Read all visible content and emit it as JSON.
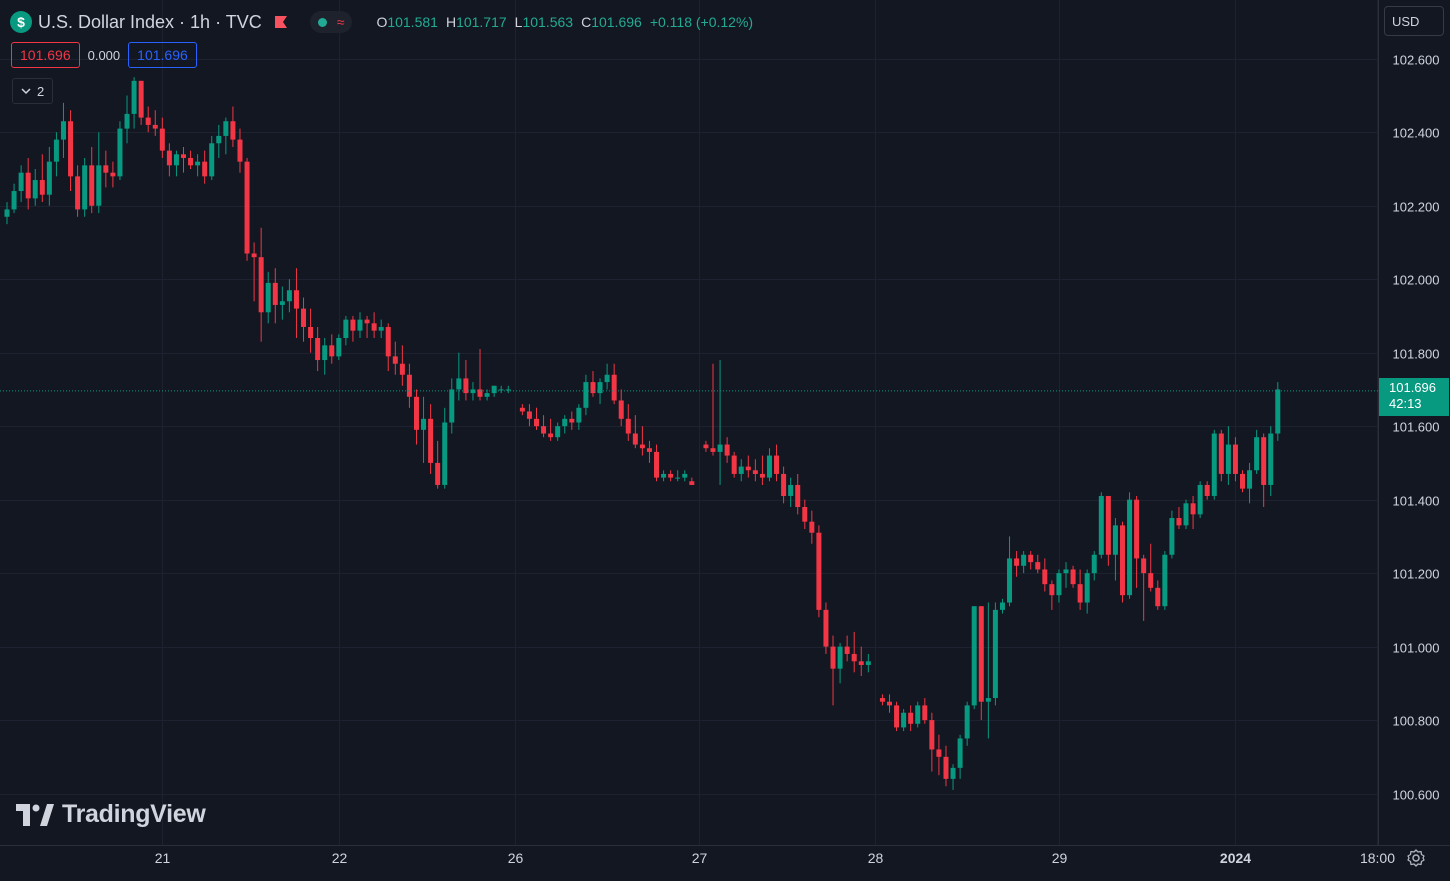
{
  "header": {
    "icon_glyph": "$",
    "title": "U.S. Dollar Index · 1h · TVC",
    "ohlc": {
      "o_label": "O",
      "o": "101.581",
      "h_label": "H",
      "h": "101.717",
      "l_label": "L",
      "l": "101.563",
      "c_label": "C",
      "c": "101.696",
      "change": "+0.118 (+0.12%)"
    },
    "status_icons": [
      "market-open-dot-icon",
      "delayed-data-icon"
    ]
  },
  "trade": {
    "sell": "101.696",
    "spread": "0.000",
    "buy": "101.696"
  },
  "indicators_toggle": {
    "count": "2"
  },
  "currency_button": "USD",
  "last_price": {
    "value": "101.696",
    "countdown": "42:13"
  },
  "logo_text": "TradingView",
  "colors": {
    "up": "#089981",
    "down": "#f23645",
    "background": "#131722",
    "grid": "#1e2230",
    "text": "#d1d4dc"
  },
  "chart_data": {
    "type": "candlestick",
    "title": "U.S. Dollar Index · 1h · TVC",
    "interval": "1h",
    "y_ticks": [
      "102.600",
      "102.400",
      "102.200",
      "102.000",
      "101.800",
      "101.600",
      "101.400",
      "101.200",
      "101.000",
      "100.800",
      "100.600"
    ],
    "ylim": [
      100.46,
      102.76
    ],
    "x_ticks": [
      {
        "label": "21",
        "index": 22
      },
      {
        "label": "22",
        "index": 47
      },
      {
        "label": "26",
        "index": 72
      },
      {
        "label": "27",
        "index": 98
      },
      {
        "label": "28",
        "index": 123
      },
      {
        "label": "29",
        "index": 149
      },
      {
        "label": "2024",
        "index": 174
      },
      {
        "label": "18:00",
        "index": 194
      }
    ],
    "grid": true,
    "last_price_line": 101.696,
    "candles": [
      [
        102.17,
        102.21,
        102.15,
        102.19
      ],
      [
        102.19,
        102.26,
        102.18,
        102.24
      ],
      [
        102.24,
        102.31,
        102.21,
        102.29
      ],
      [
        102.29,
        102.33,
        102.19,
        102.22
      ],
      [
        102.22,
        102.3,
        102.2,
        102.27
      ],
      [
        102.27,
        102.34,
        102.21,
        102.23
      ],
      [
        102.23,
        102.36,
        102.2,
        102.32
      ],
      [
        102.32,
        102.4,
        102.28,
        102.38
      ],
      [
        102.38,
        102.48,
        102.33,
        102.43
      ],
      [
        102.43,
        102.46,
        102.24,
        102.28
      ],
      [
        102.28,
        102.31,
        102.17,
        102.19
      ],
      [
        102.19,
        102.33,
        102.17,
        102.31
      ],
      [
        102.31,
        102.36,
        102.18,
        102.2
      ],
      [
        102.2,
        102.4,
        102.18,
        102.31
      ],
      [
        102.31,
        102.35,
        102.25,
        102.29
      ],
      [
        102.29,
        102.32,
        102.25,
        102.28
      ],
      [
        102.28,
        102.43,
        102.27,
        102.41
      ],
      [
        102.41,
        102.5,
        102.37,
        102.45
      ],
      [
        102.45,
        102.55,
        102.41,
        102.54
      ],
      [
        102.54,
        102.54,
        102.42,
        102.44
      ],
      [
        102.44,
        102.47,
        102.4,
        102.42
      ],
      [
        102.42,
        102.46,
        102.39,
        102.41
      ],
      [
        102.41,
        102.44,
        102.33,
        102.35
      ],
      [
        102.35,
        102.37,
        102.28,
        102.31
      ],
      [
        102.31,
        102.35,
        102.28,
        102.34
      ],
      [
        102.34,
        102.36,
        102.29,
        102.33
      ],
      [
        102.33,
        102.35,
        102.3,
        102.31
      ],
      [
        102.31,
        102.34,
        102.28,
        102.32
      ],
      [
        102.32,
        102.35,
        102.26,
        102.28
      ],
      [
        102.28,
        102.39,
        102.27,
        102.37
      ],
      [
        102.37,
        102.42,
        102.33,
        102.39
      ],
      [
        102.39,
        102.44,
        102.34,
        102.43
      ],
      [
        102.43,
        102.47,
        102.36,
        102.38
      ],
      [
        102.38,
        102.41,
        102.29,
        102.32
      ],
      [
        102.32,
        102.33,
        102.05,
        102.07
      ],
      [
        102.07,
        102.1,
        101.94,
        102.06
      ],
      [
        102.06,
        102.14,
        101.83,
        101.91
      ],
      [
        101.91,
        102.02,
        101.88,
        101.99
      ],
      [
        101.99,
        102.03,
        101.88,
        101.93
      ],
      [
        101.93,
        101.98,
        101.89,
        101.94
      ],
      [
        101.94,
        102.0,
        101.91,
        101.97
      ],
      [
        101.97,
        102.03,
        101.84,
        101.92
      ],
      [
        101.92,
        101.95,
        101.83,
        101.87
      ],
      [
        101.87,
        101.92,
        101.8,
        101.84
      ],
      [
        101.84,
        101.87,
        101.75,
        101.78
      ],
      [
        101.78,
        101.84,
        101.74,
        101.82
      ],
      [
        101.82,
        101.85,
        101.77,
        101.79
      ],
      [
        101.79,
        101.85,
        101.78,
        101.84
      ],
      [
        101.84,
        101.9,
        101.82,
        101.89
      ],
      [
        101.89,
        101.9,
        101.83,
        101.86
      ],
      [
        101.86,
        101.91,
        101.84,
        101.89
      ],
      [
        101.89,
        101.9,
        101.84,
        101.88
      ],
      [
        101.88,
        101.91,
        101.84,
        101.86
      ],
      [
        101.86,
        101.89,
        101.84,
        101.87
      ],
      [
        101.87,
        101.88,
        101.75,
        101.79
      ],
      [
        101.79,
        101.83,
        101.74,
        101.77
      ],
      [
        101.77,
        101.82,
        101.71,
        101.74
      ],
      [
        101.74,
        101.77,
        101.65,
        101.68
      ],
      [
        101.68,
        101.7,
        101.55,
        101.59
      ],
      [
        101.59,
        101.68,
        101.5,
        101.62
      ],
      [
        101.62,
        101.66,
        101.47,
        101.5
      ],
      [
        101.5,
        101.56,
        101.43,
        101.44
      ],
      [
        101.44,
        101.65,
        101.43,
        101.61
      ],
      [
        101.61,
        101.73,
        101.58,
        101.7
      ],
      [
        101.7,
        101.8,
        101.67,
        101.73
      ],
      [
        101.73,
        101.78,
        101.67,
        101.69
      ],
      [
        101.69,
        101.72,
        101.67,
        101.7
      ],
      [
        101.7,
        101.81,
        101.67,
        101.68
      ],
      [
        101.68,
        101.7,
        101.67,
        101.69
      ],
      [
        101.69,
        101.71,
        101.68,
        101.71
      ],
      [
        101.7,
        101.71,
        101.69,
        101.7
      ],
      [
        101.7,
        101.71,
        101.69,
        101.7
      ],
      null,
      [
        101.65,
        101.66,
        101.63,
        101.64
      ],
      [
        101.64,
        101.66,
        101.6,
        101.62
      ],
      [
        101.62,
        101.65,
        101.59,
        101.6
      ],
      [
        101.6,
        101.63,
        101.57,
        101.58
      ],
      [
        101.58,
        101.62,
        101.56,
        101.57
      ],
      [
        101.57,
        101.61,
        101.56,
        101.6
      ],
      [
        101.6,
        101.63,
        101.58,
        101.62
      ],
      [
        101.62,
        101.64,
        101.59,
        101.61
      ],
      [
        101.61,
        101.66,
        101.59,
        101.65
      ],
      [
        101.65,
        101.74,
        101.63,
        101.72
      ],
      [
        101.72,
        101.75,
        101.68,
        101.69
      ],
      [
        101.69,
        101.73,
        101.66,
        101.72
      ],
      [
        101.72,
        101.77,
        101.7,
        101.74
      ],
      [
        101.74,
        101.77,
        101.66,
        101.67
      ],
      [
        101.67,
        101.7,
        101.6,
        101.62
      ],
      [
        101.62,
        101.66,
        101.56,
        101.58
      ],
      [
        101.58,
        101.63,
        101.54,
        101.55
      ],
      [
        101.55,
        101.6,
        101.52,
        101.54
      ],
      [
        101.54,
        101.56,
        101.5,
        101.53
      ],
      [
        101.53,
        101.55,
        101.45,
        101.46
      ],
      [
        101.46,
        101.48,
        101.45,
        101.47
      ],
      [
        101.47,
        101.48,
        101.45,
        101.46
      ],
      [
        101.46,
        101.48,
        101.45,
        101.46
      ],
      [
        101.46,
        101.48,
        101.45,
        101.47
      ],
      [
        101.45,
        101.46,
        101.44,
        101.44
      ],
      null,
      [
        101.55,
        101.56,
        101.53,
        101.54
      ],
      [
        101.54,
        101.77,
        101.52,
        101.53
      ],
      [
        101.53,
        101.78,
        101.44,
        101.55
      ],
      [
        101.55,
        101.57,
        101.5,
        101.52
      ],
      [
        101.52,
        101.53,
        101.46,
        101.47
      ],
      [
        101.47,
        101.51,
        101.45,
        101.49
      ],
      [
        101.49,
        101.52,
        101.46,
        101.48
      ],
      [
        101.48,
        101.51,
        101.45,
        101.47
      ],
      [
        101.47,
        101.52,
        101.44,
        101.46
      ],
      [
        101.46,
        101.54,
        101.45,
        101.52
      ],
      [
        101.52,
        101.55,
        101.45,
        101.47
      ],
      [
        101.47,
        101.49,
        101.39,
        101.41
      ],
      [
        101.41,
        101.46,
        101.38,
        101.44
      ],
      [
        101.44,
        101.47,
        101.36,
        101.38
      ],
      [
        101.38,
        101.4,
        101.32,
        101.34
      ],
      [
        101.34,
        101.37,
        101.28,
        101.31
      ],
      [
        101.31,
        101.33,
        101.08,
        101.1
      ],
      [
        101.1,
        101.12,
        100.98,
        101.0
      ],
      [
        101.0,
        101.03,
        100.84,
        100.94
      ],
      [
        100.94,
        101.01,
        100.9,
        101.0
      ],
      [
        101.0,
        101.03,
        100.96,
        100.98
      ],
      [
        100.98,
        101.04,
        100.93,
        100.96
      ],
      [
        100.96,
        101.0,
        100.92,
        100.95
      ],
      [
        100.95,
        100.98,
        100.93,
        100.96
      ],
      null,
      [
        100.86,
        100.87,
        100.84,
        100.85
      ],
      [
        100.85,
        100.87,
        100.82,
        100.84
      ],
      [
        100.84,
        100.85,
        100.77,
        100.78
      ],
      [
        100.78,
        100.83,
        100.77,
        100.82
      ],
      [
        100.82,
        100.84,
        100.77,
        100.79
      ],
      [
        100.79,
        100.85,
        100.78,
        100.84
      ],
      [
        100.84,
        100.86,
        100.79,
        100.8
      ],
      [
        100.8,
        100.82,
        100.66,
        100.72
      ],
      [
        100.72,
        100.76,
        100.65,
        100.7
      ],
      [
        100.7,
        100.73,
        100.62,
        100.64
      ],
      [
        100.64,
        100.68,
        100.61,
        100.67
      ],
      [
        100.67,
        100.76,
        100.64,
        100.75
      ],
      [
        100.75,
        100.85,
        100.73,
        100.84
      ],
      [
        100.84,
        101.11,
        100.83,
        101.11
      ],
      [
        101.11,
        101.11,
        100.8,
        100.85
      ],
      [
        100.85,
        101.12,
        100.75,
        100.86
      ],
      [
        100.86,
        101.12,
        100.84,
        101.1
      ],
      [
        101.1,
        101.13,
        101.09,
        101.12
      ],
      [
        101.12,
        101.3,
        101.11,
        101.24
      ],
      [
        101.24,
        101.26,
        101.19,
        101.22
      ],
      [
        101.22,
        101.26,
        101.2,
        101.25
      ],
      [
        101.25,
        101.26,
        101.21,
        101.23
      ],
      [
        101.23,
        101.25,
        101.2,
        101.21
      ],
      [
        101.21,
        101.24,
        101.15,
        101.17
      ],
      [
        101.17,
        101.18,
        101.1,
        101.14
      ],
      [
        101.14,
        101.21,
        101.12,
        101.2
      ],
      [
        101.2,
        101.23,
        101.16,
        101.21
      ],
      [
        101.21,
        101.22,
        101.16,
        101.17
      ],
      [
        101.17,
        101.21,
        101.1,
        101.12
      ],
      [
        101.12,
        101.21,
        101.09,
        101.2
      ],
      [
        101.2,
        101.26,
        101.18,
        101.25
      ],
      [
        101.25,
        101.42,
        101.24,
        101.41
      ],
      [
        101.41,
        101.41,
        101.22,
        101.25
      ],
      [
        101.25,
        101.35,
        101.18,
        101.33
      ],
      [
        101.33,
        101.34,
        101.12,
        101.14
      ],
      [
        101.14,
        101.42,
        101.13,
        101.4
      ],
      [
        101.4,
        101.41,
        101.16,
        101.24
      ],
      [
        101.24,
        101.25,
        101.07,
        101.2
      ],
      [
        101.2,
        101.28,
        101.15,
        101.16
      ],
      [
        101.16,
        101.18,
        101.1,
        101.11
      ],
      [
        101.11,
        101.26,
        101.1,
        101.25
      ],
      [
        101.25,
        101.37,
        101.24,
        101.35
      ],
      [
        101.35,
        101.38,
        101.32,
        101.33
      ],
      [
        101.33,
        101.4,
        101.32,
        101.39
      ],
      [
        101.39,
        101.41,
        101.32,
        101.36
      ],
      [
        101.36,
        101.45,
        101.35,
        101.44
      ],
      [
        101.44,
        101.45,
        101.4,
        101.41
      ],
      [
        101.41,
        101.59,
        101.4,
        101.58
      ],
      [
        101.58,
        101.59,
        101.45,
        101.47
      ],
      [
        101.47,
        101.6,
        101.44,
        101.55
      ],
      [
        101.55,
        101.57,
        101.45,
        101.47
      ],
      [
        101.47,
        101.48,
        101.42,
        101.43
      ],
      [
        101.43,
        101.5,
        101.39,
        101.48
      ],
      [
        101.48,
        101.59,
        101.47,
        101.57
      ],
      [
        101.57,
        101.58,
        101.38,
        101.44
      ],
      [
        101.44,
        101.6,
        101.41,
        101.58
      ],
      [
        101.58,
        101.72,
        101.56,
        101.7
      ]
    ]
  }
}
